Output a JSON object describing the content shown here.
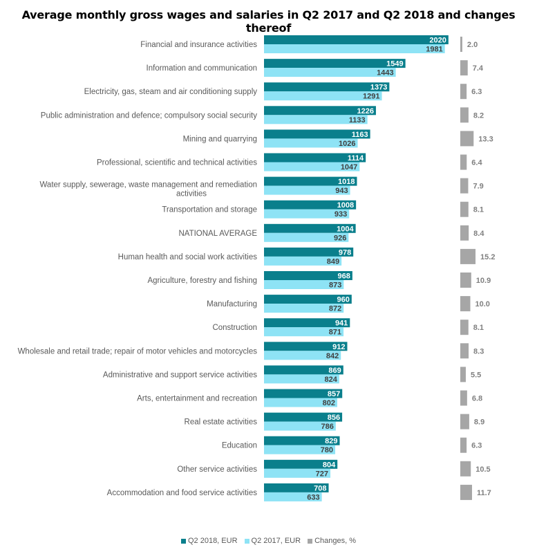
{
  "colors": {
    "q2_2018": "#0a7f8c",
    "q2_2017": "#8ee3f5",
    "changes": "#a6a6a6"
  },
  "chart_data": {
    "type": "bar",
    "title": "Average monthly gross wages and salaries in Q2 2017 and Q2 2018 and changes thereof",
    "orientation": "horizontal",
    "legend_position": "bottom",
    "grid": false,
    "categories": [
      "Financial and insurance activities",
      "Information and communication",
      "Electricity, gas, steam and air conditioning supply",
      "Public administration and defence; compulsory social security",
      "Mining and quarrying",
      "Professional, scientific and technical activities",
      "Water supply, sewerage, waste management and remediation activities",
      "Transportation and storage",
      "NATIONAL AVERAGE",
      "Human health and social work activities",
      "Agriculture, forestry and fishing",
      "Manufacturing",
      "Construction",
      "Wholesale and retail trade; repair of motor vehicles and motorcycles",
      "Administrative and support service activities",
      "Arts, entertainment and recreation",
      "Real estate activities",
      "Education",
      "Other service activities",
      "Accommodation and food service activities"
    ],
    "series": [
      {
        "name": "Q2 2018, EUR",
        "values": [
          2020,
          1549,
          1373,
          1226,
          1163,
          1114,
          1018,
          1008,
          1004,
          978,
          968,
          960,
          941,
          912,
          869,
          857,
          856,
          829,
          804,
          708
        ]
      },
      {
        "name": "Q2 2017, EUR",
        "values": [
          1981,
          1443,
          1291,
          1133,
          1026,
          1047,
          943,
          933,
          926,
          849,
          873,
          872,
          871,
          842,
          824,
          802,
          786,
          780,
          727,
          633
        ]
      },
      {
        "name": "Changes, %",
        "values": [
          2.0,
          7.4,
          6.3,
          8.2,
          13.3,
          6.4,
          7.9,
          8.1,
          8.4,
          15.2,
          10.9,
          10.0,
          8.1,
          8.3,
          5.5,
          6.8,
          8.9,
          6.3,
          10.5,
          11.7
        ]
      }
    ]
  }
}
